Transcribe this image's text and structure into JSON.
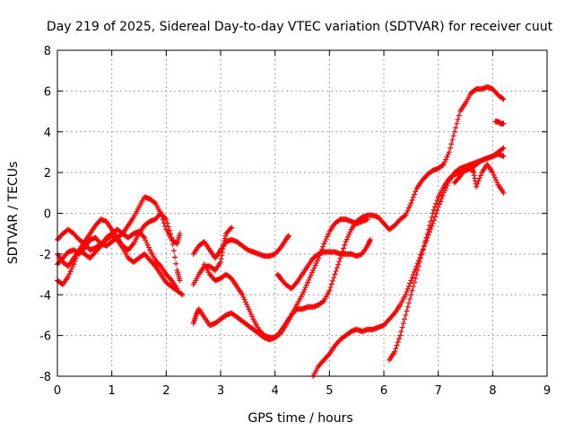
{
  "chart_data": {
    "type": "scatter",
    "title": "Day 219 of 2025, Sidereal Day-to-day VTEC variation (SDTVAR) for receiver cuut",
    "xlabel": "GPS time / hours",
    "ylabel": "SDTVAR / TECUs",
    "xlim": [
      0,
      9
    ],
    "ylim": [
      -8,
      8
    ],
    "xticks": [
      0,
      1,
      2,
      3,
      4,
      5,
      6,
      7,
      8,
      9
    ],
    "yticks": [
      -8,
      -6,
      -4,
      -2,
      0,
      2,
      4,
      6,
      8
    ],
    "grid": true,
    "marker": "plus",
    "color": "#ff0000",
    "series": [
      {
        "points": [
          [
            0.0,
            -1.3
          ],
          [
            0.1,
            -1.0
          ],
          [
            0.2,
            -0.8
          ],
          [
            0.3,
            -1.0
          ],
          [
            0.4,
            -1.3
          ],
          [
            0.5,
            -1.5
          ],
          [
            0.6,
            -1.8
          ],
          [
            0.7,
            -1.7
          ],
          [
            0.8,
            -1.5
          ],
          [
            0.9,
            -1.6
          ],
          [
            1.0,
            -1.4
          ],
          [
            1.1,
            -1.2
          ],
          [
            1.2,
            -1.0
          ],
          [
            1.3,
            -0.6
          ],
          [
            1.4,
            -0.2
          ],
          [
            1.5,
            0.3
          ],
          [
            1.6,
            0.8
          ],
          [
            1.7,
            0.7
          ],
          [
            1.8,
            0.5
          ],
          [
            1.9,
            0.0
          ],
          [
            2.0,
            -0.8
          ],
          [
            2.1,
            -1.3
          ],
          [
            2.2,
            -1.5
          ],
          [
            2.25,
            -1.0
          ]
        ]
      },
      {
        "points": [
          [
            0.0,
            -3.3
          ],
          [
            0.1,
            -3.5
          ],
          [
            0.2,
            -3.1
          ],
          [
            0.3,
            -2.5
          ],
          [
            0.4,
            -1.8
          ],
          [
            0.5,
            -1.4
          ],
          [
            0.6,
            -1.0
          ],
          [
            0.7,
            -0.6
          ],
          [
            0.8,
            -0.3
          ],
          [
            0.9,
            -0.4
          ],
          [
            1.0,
            -0.8
          ],
          [
            1.1,
            -1.2
          ],
          [
            1.2,
            -1.6
          ],
          [
            1.3,
            -1.8
          ],
          [
            1.4,
            -1.5
          ],
          [
            1.5,
            -1.0
          ],
          [
            1.6,
            -0.6
          ],
          [
            1.7,
            -0.4
          ],
          [
            1.8,
            -0.3
          ],
          [
            1.9,
            0.0
          ],
          [
            2.0,
            -0.3
          ],
          [
            2.1,
            -1.2
          ],
          [
            2.2,
            -2.8
          ],
          [
            2.25,
            -3.3
          ]
        ]
      },
      {
        "points": [
          [
            0.0,
            -2.5
          ],
          [
            0.1,
            -2.2
          ],
          [
            0.2,
            -1.9
          ],
          [
            0.3,
            -1.8
          ],
          [
            0.4,
            -2.0
          ],
          [
            0.5,
            -1.7
          ],
          [
            0.6,
            -1.3
          ],
          [
            0.7,
            -1.2
          ],
          [
            0.8,
            -1.5
          ],
          [
            0.9,
            -1.3
          ],
          [
            1.0,
            -1.1
          ],
          [
            1.1,
            -1.3
          ],
          [
            1.2,
            -1.7
          ],
          [
            1.3,
            -2.2
          ],
          [
            1.4,
            -2.4
          ],
          [
            1.5,
            -2.2
          ],
          [
            1.6,
            -2.0
          ],
          [
            1.7,
            -2.3
          ],
          [
            1.8,
            -2.6
          ],
          [
            1.9,
            -3.0
          ],
          [
            2.0,
            -3.4
          ],
          [
            2.1,
            -3.6
          ],
          [
            2.2,
            -3.8
          ],
          [
            2.3,
            -4.0
          ]
        ]
      },
      {
        "points": [
          [
            0.0,
            -2.0
          ],
          [
            0.1,
            -2.4
          ],
          [
            0.2,
            -2.6
          ],
          [
            0.3,
            -2.2
          ],
          [
            0.4,
            -1.8
          ],
          [
            0.5,
            -2.0
          ],
          [
            0.6,
            -2.2
          ],
          [
            0.7,
            -1.9
          ],
          [
            0.8,
            -1.6
          ],
          [
            0.9,
            -1.2
          ],
          [
            1.0,
            -1.0
          ],
          [
            1.1,
            -0.8
          ],
          [
            1.2,
            -1.0
          ],
          [
            1.3,
            -1.2
          ],
          [
            1.4,
            -1.0
          ],
          [
            1.5,
            -0.9
          ],
          [
            1.6,
            -1.2
          ],
          [
            1.7,
            -1.8
          ],
          [
            1.8,
            -2.3
          ],
          [
            1.9,
            -2.6
          ],
          [
            2.0,
            -3.0
          ],
          [
            2.1,
            -3.3
          ],
          [
            2.2,
            -3.7
          ]
        ]
      },
      {
        "points": [
          [
            2.5,
            -2.0
          ],
          [
            2.6,
            -1.6
          ],
          [
            2.7,
            -1.4
          ],
          [
            2.8,
            -1.8
          ],
          [
            2.9,
            -2.2
          ],
          [
            3.0,
            -1.8
          ],
          [
            3.1,
            -1.4
          ],
          [
            3.2,
            -1.3
          ],
          [
            3.3,
            -1.4
          ],
          [
            3.4,
            -1.6
          ],
          [
            3.5,
            -1.8
          ],
          [
            3.6,
            -1.9
          ],
          [
            3.7,
            -2.0
          ],
          [
            3.8,
            -2.1
          ],
          [
            3.9,
            -2.1
          ],
          [
            4.0,
            -2.0
          ],
          [
            4.1,
            -1.7
          ],
          [
            4.2,
            -1.3
          ],
          [
            4.25,
            -1.1
          ]
        ]
      },
      {
        "points": [
          [
            2.5,
            -3.5
          ],
          [
            2.6,
            -3.0
          ],
          [
            2.7,
            -2.6
          ],
          [
            2.8,
            -2.6
          ],
          [
            2.9,
            -2.8
          ],
          [
            3.0,
            -2.4
          ],
          [
            3.05,
            -1.6
          ],
          [
            3.1,
            -1.0
          ],
          [
            3.2,
            -0.7
          ]
        ]
      },
      {
        "points": [
          [
            2.5,
            -5.4
          ],
          [
            2.55,
            -5.0
          ],
          [
            2.6,
            -4.7
          ],
          [
            2.7,
            -5.1
          ],
          [
            2.8,
            -5.5
          ],
          [
            2.9,
            -5.4
          ],
          [
            3.0,
            -5.2
          ],
          [
            3.1,
            -5.0
          ],
          [
            3.2,
            -4.9
          ],
          [
            3.3,
            -5.1
          ],
          [
            3.4,
            -5.3
          ],
          [
            3.5,
            -5.5
          ],
          [
            3.6,
            -5.7
          ],
          [
            3.7,
            -5.9
          ],
          [
            3.8,
            -6.1
          ],
          [
            3.9,
            -6.2
          ],
          [
            4.0,
            -6.1
          ],
          [
            4.1,
            -5.9
          ],
          [
            4.2,
            -5.5
          ],
          [
            4.3,
            -5.0
          ],
          [
            4.4,
            -4.7
          ],
          [
            4.5,
            -4.7
          ],
          [
            4.6,
            -4.6
          ],
          [
            4.7,
            -4.6
          ],
          [
            4.8,
            -4.5
          ],
          [
            4.9,
            -4.3
          ],
          [
            5.0,
            -3.8
          ],
          [
            5.1,
            -3.0
          ],
          [
            5.2,
            -2.2
          ],
          [
            5.3,
            -1.4
          ],
          [
            5.4,
            -0.8
          ],
          [
            5.5,
            -0.4
          ],
          [
            5.6,
            -0.2
          ],
          [
            5.7,
            -0.1
          ],
          [
            5.8,
            -0.1
          ],
          [
            5.9,
            -0.2
          ],
          [
            6.0,
            -0.5
          ],
          [
            6.1,
            -0.8
          ],
          [
            6.2,
            -0.6
          ],
          [
            6.3,
            -0.3
          ],
          [
            6.4,
            -0.1
          ],
          [
            6.5,
            0.5
          ],
          [
            6.6,
            1.2
          ],
          [
            6.7,
            1.6
          ],
          [
            6.8,
            1.9
          ],
          [
            6.9,
            2.1
          ],
          [
            7.0,
            2.2
          ],
          [
            7.1,
            2.4
          ],
          [
            7.2,
            3.0
          ],
          [
            7.3,
            4.0
          ],
          [
            7.4,
            5.0
          ],
          [
            7.5,
            5.4
          ],
          [
            7.6,
            5.9
          ],
          [
            7.7,
            6.1
          ],
          [
            7.8,
            6.1
          ],
          [
            7.9,
            6.2
          ],
          [
            8.0,
            6.1
          ],
          [
            8.1,
            5.8
          ],
          [
            8.2,
            5.6
          ]
        ]
      },
      {
        "points": [
          [
            2.7,
            -2.5
          ],
          [
            2.8,
            -3.0
          ],
          [
            2.9,
            -3.3
          ],
          [
            3.0,
            -3.2
          ],
          [
            3.1,
            -3.0
          ],
          [
            3.2,
            -3.2
          ],
          [
            3.3,
            -3.6
          ],
          [
            3.4,
            -4.0
          ],
          [
            3.5,
            -4.6
          ],
          [
            3.6,
            -5.2
          ],
          [
            3.7,
            -5.7
          ],
          [
            3.8,
            -6.0
          ],
          [
            3.9,
            -6.1
          ],
          [
            4.0,
            -6.1
          ],
          [
            4.1,
            -5.8
          ],
          [
            4.2,
            -5.4
          ],
          [
            4.3,
            -5.0
          ],
          [
            4.4,
            -4.5
          ],
          [
            4.5,
            -4.0
          ],
          [
            4.6,
            -3.4
          ],
          [
            4.7,
            -2.8
          ],
          [
            4.8,
            -2.2
          ],
          [
            4.9,
            -1.5
          ],
          [
            5.0,
            -0.9
          ],
          [
            5.1,
            -0.5
          ],
          [
            5.2,
            -0.3
          ],
          [
            5.3,
            -0.3
          ],
          [
            5.4,
            -0.4
          ],
          [
            5.5,
            -0.5
          ],
          [
            5.6,
            -0.4
          ],
          [
            5.7,
            -0.3
          ]
        ]
      },
      {
        "points": [
          [
            4.05,
            -3.0
          ],
          [
            4.1,
            -3.2
          ],
          [
            4.2,
            -3.5
          ],
          [
            4.3,
            -3.7
          ],
          [
            4.4,
            -3.4
          ],
          [
            4.5,
            -3.0
          ],
          [
            4.6,
            -2.6
          ],
          [
            4.7,
            -2.2
          ],
          [
            4.8,
            -2.0
          ],
          [
            4.9,
            -1.9
          ],
          [
            5.0,
            -1.9
          ],
          [
            5.1,
            -1.9
          ],
          [
            5.2,
            -2.0
          ],
          [
            5.3,
            -2.0
          ],
          [
            5.4,
            -2.0
          ],
          [
            5.5,
            -2.1
          ],
          [
            5.6,
            -2.0
          ],
          [
            5.7,
            -1.6
          ],
          [
            5.75,
            -1.3
          ]
        ]
      },
      {
        "points": [
          [
            4.7,
            -8.0
          ],
          [
            4.8,
            -7.5
          ],
          [
            4.9,
            -7.2
          ],
          [
            5.0,
            -6.9
          ],
          [
            5.1,
            -6.5
          ],
          [
            5.2,
            -6.2
          ],
          [
            5.3,
            -6.0
          ],
          [
            5.4,
            -5.8
          ],
          [
            5.5,
            -5.7
          ],
          [
            5.6,
            -5.8
          ],
          [
            5.7,
            -5.7
          ],
          [
            5.8,
            -5.7
          ],
          [
            5.9,
            -5.6
          ],
          [
            6.0,
            -5.5
          ],
          [
            6.1,
            -5.2
          ],
          [
            6.2,
            -4.9
          ],
          [
            6.3,
            -4.5
          ],
          [
            6.4,
            -4.0
          ],
          [
            6.5,
            -3.3
          ],
          [
            6.6,
            -2.6
          ],
          [
            6.7,
            -1.9
          ],
          [
            6.8,
            -1.2
          ],
          [
            6.9,
            -0.5
          ],
          [
            7.0,
            0.3
          ],
          [
            7.1,
            1.0
          ],
          [
            7.2,
            1.6
          ],
          [
            7.3,
            2.0
          ],
          [
            7.4,
            2.2
          ],
          [
            7.5,
            2.3
          ],
          [
            7.6,
            2.4
          ],
          [
            7.7,
            2.5
          ],
          [
            7.8,
            2.6
          ],
          [
            7.9,
            2.7
          ],
          [
            8.0,
            2.8
          ],
          [
            8.1,
            3.0
          ],
          [
            8.2,
            3.2
          ]
        ]
      },
      {
        "points": [
          [
            6.1,
            -7.2
          ],
          [
            6.2,
            -6.8
          ],
          [
            6.3,
            -6.0
          ],
          [
            6.4,
            -5.0
          ],
          [
            6.5,
            -4.0
          ],
          [
            6.6,
            -3.0
          ],
          [
            6.7,
            -2.0
          ],
          [
            6.8,
            -1.0
          ],
          [
            6.9,
            0.0
          ],
          [
            7.0,
            0.8
          ],
          [
            7.1,
            1.3
          ],
          [
            7.2,
            1.7
          ],
          [
            7.3,
            1.9
          ],
          [
            7.4,
            2.0
          ],
          [
            7.5,
            2.1
          ],
          [
            7.6,
            2.2
          ],
          [
            7.7,
            2.4
          ],
          [
            7.8,
            2.6
          ],
          [
            7.9,
            2.7
          ],
          [
            8.0,
            2.8
          ],
          [
            8.1,
            2.9
          ],
          [
            8.2,
            2.8
          ]
        ]
      },
      {
        "points": [
          [
            7.3,
            1.5
          ],
          [
            7.4,
            1.8
          ],
          [
            7.5,
            2.2
          ],
          [
            7.6,
            2.3
          ],
          [
            7.65,
            2.0
          ],
          [
            7.7,
            1.3
          ],
          [
            7.8,
            2.0
          ],
          [
            7.9,
            2.4
          ],
          [
            8.0,
            2.0
          ],
          [
            8.1,
            1.4
          ],
          [
            8.2,
            1.0
          ]
        ]
      },
      {
        "points": [
          [
            8.05,
            4.5
          ],
          [
            8.1,
            4.5
          ],
          [
            8.15,
            4.4
          ],
          [
            8.2,
            4.4
          ]
        ]
      }
    ]
  }
}
